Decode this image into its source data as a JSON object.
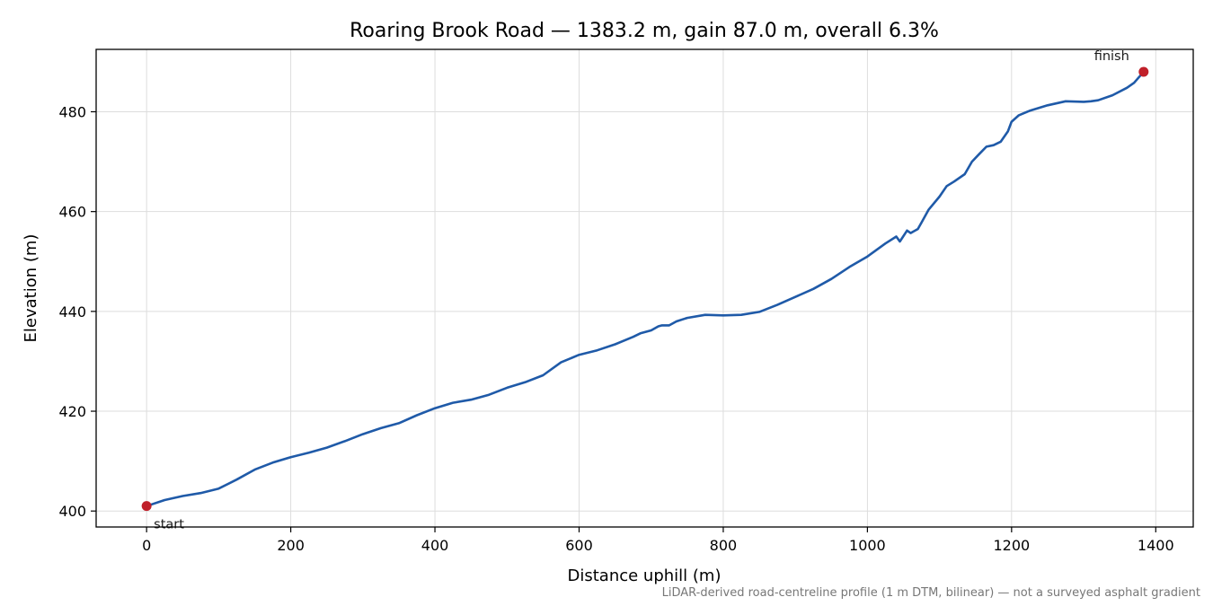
{
  "chart_data": {
    "type": "line",
    "title": "Roaring Brook Road — 1383.2 m, gain 87.0 m, overall 6.3%",
    "xlabel": "Distance uphill (m)",
    "ylabel": "Elevation (m)",
    "xlim": [
      -70,
      1452
    ],
    "ylim": [
      396.8,
      492.5
    ],
    "xticks": [
      0,
      200,
      400,
      600,
      800,
      1000,
      1200,
      1400
    ],
    "yticks": [
      400,
      420,
      440,
      460,
      480
    ],
    "grid": true,
    "footnote": "LiDAR-derived road-centreline profile (1 m DTM, bilinear) — not a surveyed asphalt gradient",
    "colors": {
      "line": "#1f5aa8",
      "marker": "#c0202a",
      "grid": "#dddddd"
    },
    "series": [
      {
        "x": [
          0,
          25,
          50,
          75,
          100,
          125,
          150,
          175,
          200,
          225,
          250,
          275,
          300,
          325,
          350,
          375,
          400,
          425,
          450,
          475,
          500,
          525,
          550,
          575,
          600,
          625,
          650,
          675,
          685,
          700,
          710,
          715,
          725,
          735,
          750,
          775,
          800,
          825,
          850,
          875,
          900,
          925,
          950,
          975,
          1000,
          1025,
          1040,
          1045,
          1055,
          1060,
          1070,
          1075,
          1085,
          1100,
          1110,
          1120,
          1135,
          1145,
          1155,
          1165,
          1175,
          1185,
          1195,
          1200,
          1210,
          1225,
          1250,
          1275,
          1300,
          1310,
          1320,
          1340,
          1360,
          1370,
          1383.2
        ],
        "y": [
          401.0,
          402.2,
          403.0,
          403.6,
          404.5,
          406.3,
          408.3,
          409.7,
          410.8,
          411.7,
          412.7,
          414.0,
          415.4,
          416.6,
          417.6,
          419.2,
          420.6,
          421.7,
          422.3,
          423.3,
          424.7,
          425.8,
          427.2,
          429.8,
          431.3,
          432.2,
          433.4,
          434.9,
          435.6,
          436.2,
          437.0,
          437.2,
          437.2,
          438.0,
          438.7,
          439.3,
          439.2,
          439.3,
          439.9,
          441.3,
          442.9,
          444.5,
          446.5,
          448.9,
          451.0,
          453.6,
          455.0,
          454.0,
          456.2,
          455.7,
          456.5,
          457.8,
          460.4,
          463.0,
          465.1,
          466.0,
          467.5,
          470.0,
          471.5,
          473.0,
          473.3,
          474.0,
          476.1,
          478.0,
          479.3,
          480.2,
          481.3,
          482.1,
          482.0,
          482.1,
          482.3,
          483.3,
          484.8,
          485.8,
          488.0
        ]
      }
    ],
    "annotations": [
      {
        "text": "start",
        "x": 0,
        "y": 401.0
      },
      {
        "text": "finish",
        "x": 1383.2,
        "y": 488.0
      }
    ]
  }
}
